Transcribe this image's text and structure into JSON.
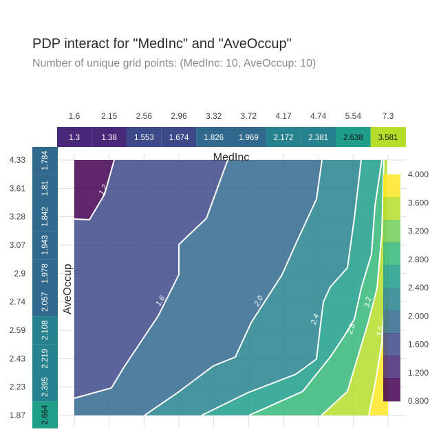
{
  "chart_data": {
    "type": "heatmap",
    "title": "PDP interact for \"MedInc\" and \"AveOccup\"",
    "subtitle": "Number of unique grid points: (MedInc: 10, AveOccup: 10)",
    "xlabel": "MedInc",
    "ylabel": "AveOccup",
    "x_ticks": [
      "1.6",
      "2.15",
      "2.56",
      "2.96",
      "3.32",
      "3.72",
      "4.17",
      "4.74",
      "5.54",
      "7.3"
    ],
    "y_ticks": [
      "4.33",
      "3.61",
      "3.28",
      "3.07",
      "2.9",
      "2.74",
      "2.59",
      "2.43",
      "2.23",
      "1.87"
    ],
    "medinc_pdp": [
      "1.3",
      "1.38",
      "1.553",
      "1.674",
      "1.826",
      "1.969",
      "2.172",
      "2.381",
      "2.638",
      "3.581"
    ],
    "aveoccup_pdp": [
      "1.784",
      "1.81",
      "1.842",
      "1.943",
      "1.978",
      "2.057",
      "2.108",
      "2.219",
      "2.395",
      "2.664"
    ],
    "contour_labels": [
      "1.2",
      "1.6",
      "2.0",
      "2.4",
      "2.8",
      "3.2",
      "3.6"
    ],
    "colorbar": {
      "ticks": [
        "4.000",
        "3.600",
        "3.200",
        "2.800",
        "2.400",
        "2.000",
        "1.600",
        "1.200",
        "0.800"
      ],
      "range": [
        0.8,
        4.0
      ],
      "colors": [
        "#440154",
        "#482878",
        "#3e4989",
        "#31688e",
        "#26828e",
        "#1f9e89",
        "#35b779",
        "#6ece58",
        "#b5de2b",
        "#fde725"
      ]
    }
  }
}
